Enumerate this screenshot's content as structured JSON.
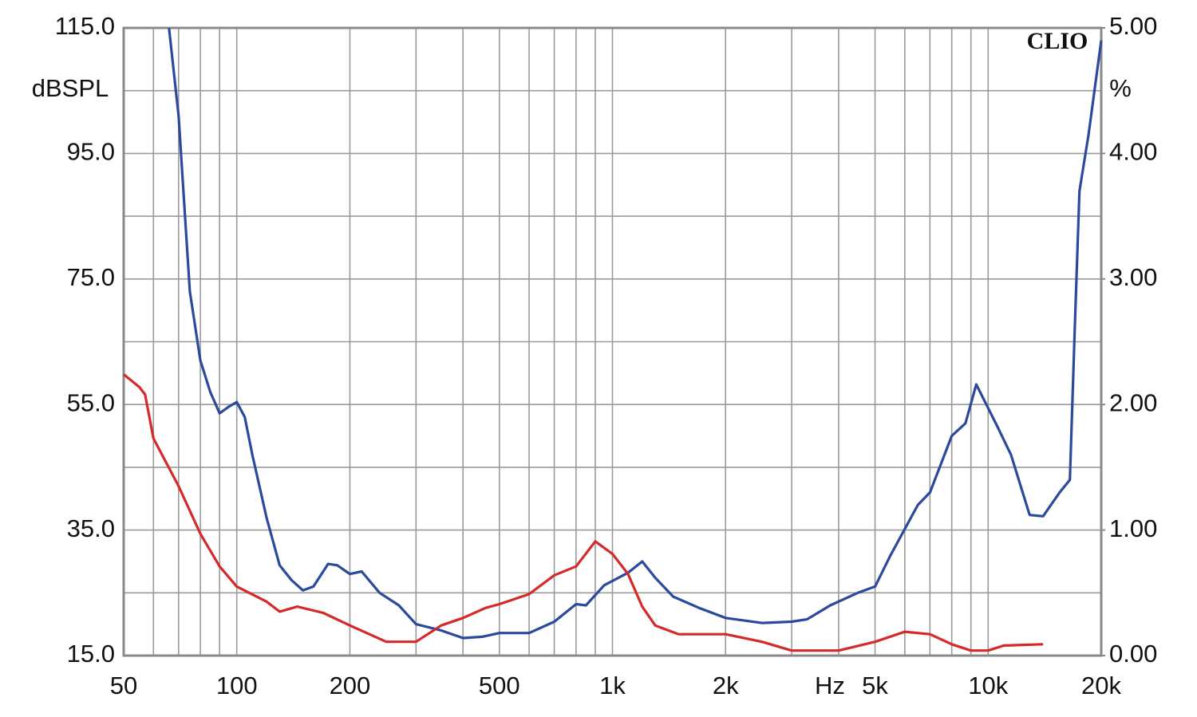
{
  "chart_data": {
    "type": "line",
    "annotation": "CLIO",
    "y_label": "dBSPL",
    "y2_label": "%",
    "x_label": "Hz",
    "xscale": "log",
    "grid": true,
    "xlim": [
      50,
      20000
    ],
    "xticks": [
      50,
      100,
      200,
      500,
      {
        "value": 1000,
        "label": "1k"
      },
      {
        "value": 2000,
        "label": "2k"
      },
      {
        "value": 5000,
        "label": "5k"
      },
      {
        "value": 10000,
        "label": "10k"
      },
      {
        "value": 20000,
        "label": "20k"
      }
    ],
    "xgrid": [
      60,
      70,
      80,
      90,
      300,
      400,
      600,
      700,
      800,
      900,
      3000,
      4000,
      6000,
      7000,
      8000,
      9000
    ],
    "ylim": [
      15,
      115
    ],
    "yticks": [
      {
        "value": 15,
        "label": "15.0"
      },
      {
        "value": 35,
        "label": "35.0"
      },
      {
        "value": 55,
        "label": "55.0"
      },
      {
        "value": 75,
        "label": "75.0"
      },
      {
        "value": 95,
        "label": "95.0"
      },
      {
        "value": 115,
        "label": "115.0"
      }
    ],
    "ygrid": [
      25,
      45,
      65,
      85,
      105
    ],
    "y2lim": [
      0,
      5
    ],
    "y2ticks": [
      {
        "value": 0,
        "label": "0.00"
      },
      {
        "value": 1,
        "label": "1.00"
      },
      {
        "value": 2,
        "label": "2.00"
      },
      {
        "value": 3,
        "label": "3.00"
      },
      {
        "value": 4,
        "label": "4.00"
      },
      {
        "value": 5,
        "label": "5.00"
      }
    ],
    "series": [
      {
        "color": "#2b4a9c",
        "axis": "y2",
        "x": [
          66,
          70,
          75,
          80,
          85,
          90,
          95,
          100,
          105,
          110,
          120,
          130,
          140,
          150,
          160,
          175,
          185,
          200,
          215,
          240,
          270,
          300,
          350,
          400,
          450,
          500,
          600,
          700,
          800,
          850,
          950,
          1100,
          1200,
          1300,
          1450,
          1700,
          2000,
          2500,
          3000,
          3300,
          3800,
          4500,
          5000,
          5500,
          6500,
          7000,
          8000,
          8700,
          9300,
          10600,
          11500,
          12900,
          14000,
          15500,
          16500,
          17000,
          17500,
          18500,
          20000
        ],
        "values": [
          5.0,
          4.3,
          2.9,
          2.35,
          2.1,
          1.93,
          1.98,
          2.02,
          1.9,
          1.6,
          1.1,
          0.72,
          0.6,
          0.52,
          0.55,
          0.73,
          0.72,
          0.65,
          0.67,
          0.5,
          0.4,
          0.25,
          0.2,
          0.14,
          0.15,
          0.18,
          0.18,
          0.27,
          0.41,
          0.4,
          0.56,
          0.66,
          0.75,
          0.62,
          0.47,
          0.38,
          0.3,
          0.26,
          0.27,
          0.29,
          0.4,
          0.5,
          0.55,
          0.8,
          1.2,
          1.3,
          1.75,
          1.85,
          2.16,
          1.82,
          1.6,
          1.12,
          1.11,
          1.3,
          1.4,
          2.6,
          3.7,
          4.15,
          4.9
        ]
      },
      {
        "color": "#d42a2a",
        "axis": "y2",
        "x": [
          50,
          55,
          57,
          60,
          70,
          80,
          90,
          100,
          120,
          130,
          145,
          170,
          200,
          250,
          300,
          350,
          400,
          460,
          500,
          600,
          700,
          800,
          900,
          1000,
          1100,
          1200,
          1300,
          1500,
          2000,
          2500,
          3000,
          4000,
          5000,
          6000,
          7000,
          8000,
          9000,
          10000,
          11000,
          14000
        ],
        "values": [
          2.24,
          2.14,
          2.08,
          1.73,
          1.35,
          0.97,
          0.71,
          0.55,
          0.43,
          0.35,
          0.39,
          0.34,
          0.24,
          0.11,
          0.11,
          0.24,
          0.3,
          0.38,
          0.41,
          0.49,
          0.64,
          0.71,
          0.91,
          0.81,
          0.65,
          0.39,
          0.24,
          0.17,
          0.17,
          0.11,
          0.04,
          0.04,
          0.11,
          0.19,
          0.17,
          0.09,
          0.04,
          0.04,
          0.08,
          0.09
        ]
      }
    ]
  }
}
